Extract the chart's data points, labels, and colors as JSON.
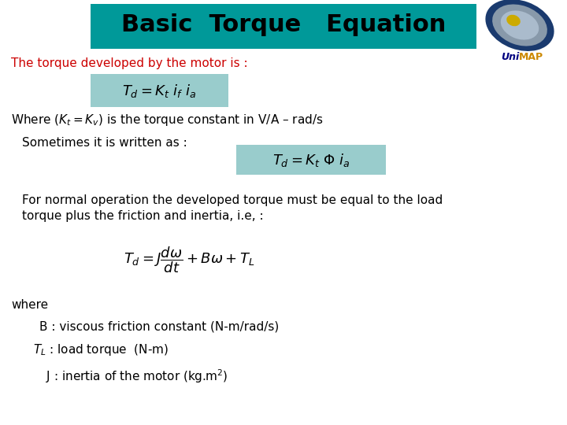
{
  "title": "Basic  Torque   Equation",
  "title_bg_color": "#009999",
  "title_text_color": "#000000",
  "title_fontsize": 22,
  "bg_color": "#ffffff",
  "red_text": "The torque developed by the motor is :",
  "red_color": "#cc0000",
  "eq1_box_color": "#99cccc",
  "eq2_box_color": "#99cccc",
  "where_text": "Where (K",
  "sometimes_text": "Sometimes it is written as :",
  "for_text1": "For normal operation the developed torque must be equal to the load",
  "for_text2": "torque plus the friction and inertia, i.e, :",
  "where2_text": "where",
  "B_text": "B : viscous friction constant (N-m/rad/s)",
  "TL_text": " : load torque  (N-m)",
  "J_text": "J : inertia of the motor (kg.m",
  "body_fontsize": 11,
  "eq_fontsize": 13
}
